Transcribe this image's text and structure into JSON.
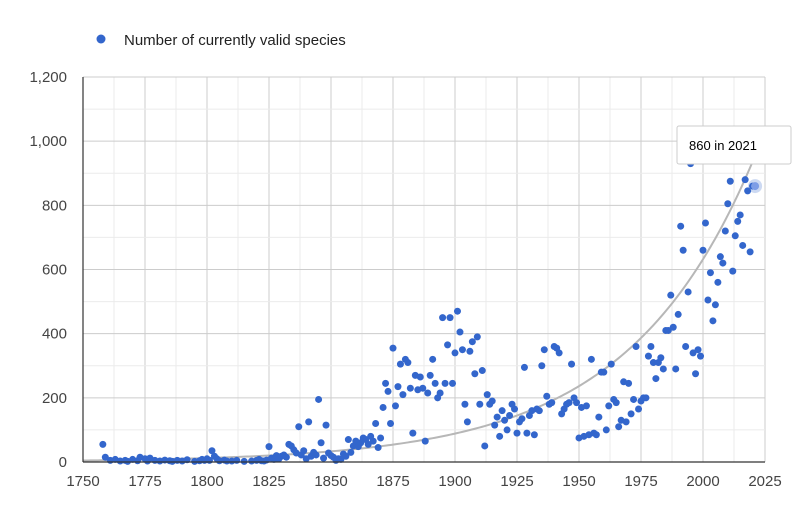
{
  "colors": {
    "series": "#3366cc",
    "trend": "#b7b7b7",
    "grid": "#cccccc",
    "axis": "#333333",
    "tick_text": "#444444"
  },
  "legend": {
    "label": "Number of currently valid species",
    "position": "top-left"
  },
  "tooltip": {
    "text": "860 in 2021"
  },
  "chart_data": {
    "type": "scatter",
    "title": "",
    "xlabel": "",
    "ylabel": "",
    "xlim": [
      1750,
      2025
    ],
    "ylim": [
      0,
      1200
    ],
    "xticks": [
      "1750",
      "1775",
      "1800",
      "1825",
      "1850",
      "1875",
      "1900",
      "1925",
      "1950",
      "1975",
      "2000",
      "2025"
    ],
    "yticks": [
      "0",
      "200",
      "400",
      "600",
      "800",
      "1,000",
      "1,200"
    ],
    "grid": true,
    "trendline": {
      "type": "exponential"
    },
    "highlight": {
      "x": 2021,
      "y": 860
    },
    "series": [
      {
        "name": "Number of currently valid species",
        "points": [
          [
            1758,
            55
          ],
          [
            1759,
            15
          ],
          [
            1761,
            5
          ],
          [
            1763,
            8
          ],
          [
            1765,
            3
          ],
          [
            1767,
            5
          ],
          [
            1768,
            2
          ],
          [
            1770,
            8
          ],
          [
            1772,
            4
          ],
          [
            1773,
            15
          ],
          [
            1775,
            10
          ],
          [
            1776,
            3
          ],
          [
            1777,
            12
          ],
          [
            1779,
            5
          ],
          [
            1781,
            3
          ],
          [
            1783,
            6
          ],
          [
            1785,
            4
          ],
          [
            1786,
            2
          ],
          [
            1788,
            5
          ],
          [
            1790,
            3
          ],
          [
            1792,
            7
          ],
          [
            1795,
            2
          ],
          [
            1797,
            4
          ],
          [
            1798,
            8
          ],
          [
            1799,
            5
          ],
          [
            1800,
            10
          ],
          [
            1801,
            5
          ],
          [
            1802,
            35
          ],
          [
            1803,
            18
          ],
          [
            1804,
            10
          ],
          [
            1805,
            4
          ],
          [
            1807,
            6
          ],
          [
            1808,
            3
          ],
          [
            1810,
            3
          ],
          [
            1812,
            5
          ],
          [
            1815,
            2
          ],
          [
            1818,
            3
          ],
          [
            1820,
            5
          ],
          [
            1821,
            8
          ],
          [
            1822,
            4
          ],
          [
            1823,
            3
          ],
          [
            1824,
            6
          ],
          [
            1825,
            48
          ],
          [
            1826,
            12
          ],
          [
            1827,
            8
          ],
          [
            1828,
            20
          ],
          [
            1829,
            10
          ],
          [
            1830,
            18
          ],
          [
            1831,
            22
          ],
          [
            1832,
            15
          ],
          [
            1833,
            55
          ],
          [
            1834,
            50
          ],
          [
            1835,
            38
          ],
          [
            1836,
            28
          ],
          [
            1837,
            110
          ],
          [
            1838,
            22
          ],
          [
            1839,
            35
          ],
          [
            1840,
            10
          ],
          [
            1841,
            125
          ],
          [
            1842,
            18
          ],
          [
            1843,
            30
          ],
          [
            1844,
            22
          ],
          [
            1845,
            195
          ],
          [
            1846,
            60
          ],
          [
            1847,
            12
          ],
          [
            1848,
            115
          ],
          [
            1849,
            28
          ],
          [
            1850,
            20
          ],
          [
            1851,
            15
          ],
          [
            1852,
            5
          ],
          [
            1853,
            10
          ],
          [
            1854,
            8
          ],
          [
            1855,
            25
          ],
          [
            1856,
            18
          ],
          [
            1857,
            70
          ],
          [
            1858,
            30
          ],
          [
            1859,
            50
          ],
          [
            1860,
            65
          ],
          [
            1861,
            48
          ],
          [
            1862,
            60
          ],
          [
            1863,
            75
          ],
          [
            1864,
            70
          ],
          [
            1865,
            55
          ],
          [
            1866,
            80
          ],
          [
            1867,
            65
          ],
          [
            1868,
            120
          ],
          [
            1869,
            45
          ],
          [
            1870,
            75
          ],
          [
            1871,
            170
          ],
          [
            1872,
            245
          ],
          [
            1873,
            220
          ],
          [
            1874,
            120
          ],
          [
            1875,
            355
          ],
          [
            1876,
            175
          ],
          [
            1877,
            235
          ],
          [
            1878,
            305
          ],
          [
            1879,
            210
          ],
          [
            1880,
            320
          ],
          [
            1881,
            310
          ],
          [
            1882,
            230
          ],
          [
            1883,
            90
          ],
          [
            1884,
            270
          ],
          [
            1885,
            225
          ],
          [
            1886,
            265
          ],
          [
            1887,
            230
          ],
          [
            1888,
            65
          ],
          [
            1889,
            215
          ],
          [
            1890,
            270
          ],
          [
            1891,
            320
          ],
          [
            1892,
            245
          ],
          [
            1893,
            200
          ],
          [
            1894,
            215
          ],
          [
            1895,
            450
          ],
          [
            1896,
            245
          ],
          [
            1897,
            365
          ],
          [
            1898,
            450
          ],
          [
            1899,
            245
          ],
          [
            1900,
            340
          ],
          [
            1901,
            470
          ],
          [
            1902,
            405
          ],
          [
            1903,
            350
          ],
          [
            1904,
            180
          ],
          [
            1905,
            125
          ],
          [
            1906,
            345
          ],
          [
            1907,
            375
          ],
          [
            1908,
            275
          ],
          [
            1909,
            390
          ],
          [
            1910,
            180
          ],
          [
            1911,
            285
          ],
          [
            1912,
            50
          ],
          [
            1913,
            210
          ],
          [
            1914,
            180
          ],
          [
            1915,
            190
          ],
          [
            1916,
            115
          ],
          [
            1917,
            140
          ],
          [
            1918,
            80
          ],
          [
            1919,
            160
          ],
          [
            1920,
            130
          ],
          [
            1921,
            100
          ],
          [
            1922,
            145
          ],
          [
            1923,
            180
          ],
          [
            1924,
            165
          ],
          [
            1925,
            90
          ],
          [
            1926,
            125
          ],
          [
            1927,
            135
          ],
          [
            1928,
            295
          ],
          [
            1929,
            90
          ],
          [
            1930,
            145
          ],
          [
            1931,
            160
          ],
          [
            1932,
            85
          ],
          [
            1933,
            165
          ],
          [
            1934,
            160
          ],
          [
            1935,
            300
          ],
          [
            1936,
            350
          ],
          [
            1937,
            205
          ],
          [
            1938,
            180
          ],
          [
            1939,
            185
          ],
          [
            1940,
            360
          ],
          [
            1941,
            355
          ],
          [
            1942,
            340
          ],
          [
            1943,
            150
          ],
          [
            1944,
            165
          ],
          [
            1945,
            180
          ],
          [
            1946,
            185
          ],
          [
            1947,
            305
          ],
          [
            1948,
            200
          ],
          [
            1949,
            185
          ],
          [
            1950,
            75
          ],
          [
            1951,
            170
          ],
          [
            1952,
            80
          ],
          [
            1953,
            175
          ],
          [
            1954,
            85
          ],
          [
            1955,
            320
          ],
          [
            1956,
            90
          ],
          [
            1957,
            85
          ],
          [
            1958,
            140
          ],
          [
            1959,
            280
          ],
          [
            1960,
            280
          ],
          [
            1961,
            100
          ],
          [
            1962,
            175
          ],
          [
            1963,
            305
          ],
          [
            1964,
            195
          ],
          [
            1965,
            185
          ],
          [
            1966,
            110
          ],
          [
            1967,
            130
          ],
          [
            1968,
            250
          ],
          [
            1969,
            125
          ],
          [
            1970,
            245
          ],
          [
            1971,
            150
          ],
          [
            1972,
            195
          ],
          [
            1973,
            360
          ],
          [
            1974,
            165
          ],
          [
            1975,
            190
          ],
          [
            1976,
            200
          ],
          [
            1977,
            200
          ],
          [
            1978,
            330
          ],
          [
            1979,
            360
          ],
          [
            1980,
            310
          ],
          [
            1981,
            260
          ],
          [
            1982,
            310
          ],
          [
            1983,
            325
          ],
          [
            1984,
            290
          ],
          [
            1985,
            410
          ],
          [
            1986,
            410
          ],
          [
            1987,
            520
          ],
          [
            1988,
            420
          ],
          [
            1989,
            290
          ],
          [
            1990,
            460
          ],
          [
            1991,
            735
          ],
          [
            1992,
            660
          ],
          [
            1993,
            360
          ],
          [
            1994,
            530
          ],
          [
            1995,
            930
          ],
          [
            1996,
            340
          ],
          [
            1997,
            275
          ],
          [
            1998,
            350
          ],
          [
            1999,
            330
          ],
          [
            2000,
            660
          ],
          [
            2001,
            745
          ],
          [
            2002,
            505
          ],
          [
            2003,
            590
          ],
          [
            2004,
            440
          ],
          [
            2005,
            490
          ],
          [
            2006,
            560
          ],
          [
            2007,
            640
          ],
          [
            2008,
            620
          ],
          [
            2009,
            720
          ],
          [
            2010,
            805
          ],
          [
            2011,
            875
          ],
          [
            2012,
            595
          ],
          [
            2013,
            705
          ],
          [
            2014,
            750
          ],
          [
            2015,
            770
          ],
          [
            2016,
            675
          ],
          [
            2017,
            880
          ],
          [
            2018,
            845
          ],
          [
            2019,
            655
          ],
          [
            2020,
            860
          ],
          [
            2021,
            860
          ]
        ]
      }
    ]
  }
}
